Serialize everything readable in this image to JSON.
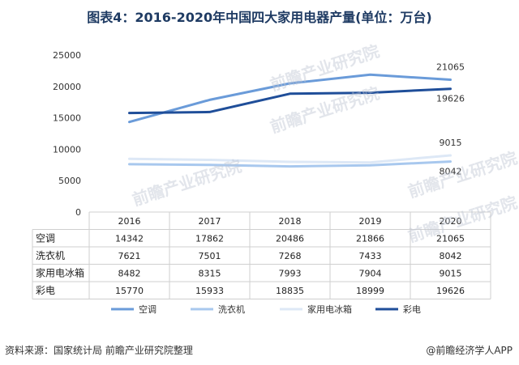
{
  "title": "图表4：2016-2020年中国四大家用电器产量(单位：万台)",
  "watermark": "前瞻产业研究院",
  "footer": {
    "source": "资料来源：国家统计局 前瞻产业研究院整理",
    "brand": "@前瞻经济学人APP"
  },
  "chart_data": {
    "type": "line",
    "categories": [
      "2016",
      "2017",
      "2018",
      "2019",
      "2020"
    ],
    "ylim": [
      0,
      25000
    ],
    "yticks": [
      0,
      5000,
      10000,
      15000,
      20000,
      25000
    ],
    "grid": false,
    "legend_position": "bottom",
    "series": [
      {
        "name": "空调",
        "color": "#6a9bd9",
        "values": [
          14342,
          17862,
          20486,
          21866,
          21065
        ],
        "end_label": "21065"
      },
      {
        "name": "洗衣机",
        "color": "#a8c8ee",
        "values": [
          7621,
          7501,
          7268,
          7433,
          8042
        ],
        "end_label": "8042"
      },
      {
        "name": "家用电冰箱",
        "color": "#dde8f6",
        "values": [
          8482,
          8315,
          7993,
          7904,
          9015
        ],
        "end_label": "9015"
      },
      {
        "name": "彩电",
        "color": "#1f4e99",
        "values": [
          15770,
          15933,
          18835,
          18999,
          19626
        ],
        "end_label": "19626"
      }
    ]
  }
}
